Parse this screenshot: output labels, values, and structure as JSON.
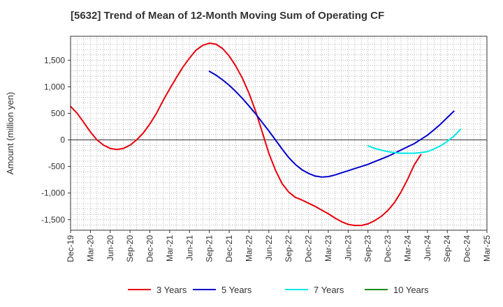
{
  "chart_data": {
    "type": "line",
    "title": "[5632]  Trend of Mean of 12-Month Moving Sum of Operating CF",
    "xlabel": "",
    "ylabel": "Amount (million yen)",
    "ylim": [
      -1700,
      1950
    ],
    "yticks": [
      -1500,
      -1000,
      -500,
      0,
      500,
      1000,
      1500
    ],
    "ytick_labels": [
      "-1,500",
      "-1,000",
      "-500",
      "0",
      "500",
      "1,000",
      "1,500"
    ],
    "x_start": "Dec-19",
    "x_months": 63,
    "xtick_labels": [
      "Dec-19",
      "Mar-20",
      "Jun-20",
      "Sep-20",
      "Dec-20",
      "Mar-21",
      "Jun-21",
      "Sep-21",
      "Dec-21",
      "Mar-22",
      "Jun-22",
      "Sep-22",
      "Dec-22",
      "Mar-23",
      "Jun-23",
      "Sep-23",
      "Dec-23",
      "Mar-24",
      "Jun-24",
      "Sep-24",
      "Dec-24",
      "Mar-25"
    ],
    "grid": true,
    "series": [
      {
        "name": "3 Years",
        "color": "#e8000b",
        "start_month": 0,
        "values": [
          630,
          500,
          330,
          150,
          0,
          -100,
          -160,
          -180,
          -160,
          -100,
          0,
          130,
          300,
          500,
          740,
          960,
          1170,
          1370,
          1540,
          1690,
          1780,
          1820,
          1800,
          1720,
          1580,
          1390,
          1160,
          880,
          540,
          150,
          -250,
          -570,
          -820,
          -980,
          -1080,
          -1130,
          -1190,
          -1250,
          -1320,
          -1390,
          -1470,
          -1540,
          -1590,
          -1610,
          -1610,
          -1580,
          -1520,
          -1440,
          -1330,
          -1180,
          -980,
          -740,
          -470,
          -280
        ]
      },
      {
        "name": "5 Years",
        "color": "#0000cc",
        "start_month": 21,
        "values": [
          1290,
          1220,
          1130,
          1030,
          910,
          780,
          640,
          490,
          330,
          170,
          0,
          -170,
          -330,
          -460,
          -560,
          -630,
          -680,
          -700,
          -690,
          -660,
          -620,
          -580,
          -540,
          -500,
          -460,
          -410,
          -360,
          -310,
          -250,
          -190,
          -130,
          -70,
          10,
          90,
          190,
          300,
          420,
          540
        ]
      },
      {
        "name": "7 Years",
        "color": "#00e8e8",
        "start_month": 45,
        "values": [
          -110,
          -160,
          -190,
          -220,
          -240,
          -250,
          -250,
          -250,
          -240,
          -220,
          -170,
          -110,
          -30,
          70,
          200
        ]
      },
      {
        "name": "10 Years",
        "color": "#1a8a1a",
        "start_month": 0,
        "values": []
      }
    ],
    "legend_position": "bottom"
  }
}
